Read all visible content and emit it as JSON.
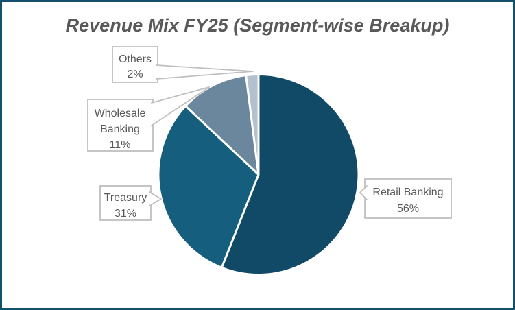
{
  "frame": {
    "border_color": "#14506E",
    "background_color": "#FFFFFF"
  },
  "title": "Revenue Mix FY25 (Segment-wise Breakup)",
  "chart_data": {
    "type": "pie",
    "title": "Revenue Mix FY25 (Segment-wise Breakup)",
    "categories": [
      "Retail Banking",
      "Treasury",
      "Wholesale Banking",
      "Others"
    ],
    "values": [
      56,
      31,
      11,
      2
    ],
    "unit": "%",
    "colors": [
      "#114A66",
      "#155E7D",
      "#6A879E",
      "#B2C1CD"
    ],
    "start_angle_deg": 0,
    "direction": "clockwise",
    "slice_border_color": "#FFFFFF",
    "legend": "none",
    "labels": "external callout boxes with category name and percentage"
  },
  "callouts": {
    "others": {
      "line1": "Others",
      "line2": "2%"
    },
    "wholesale": {
      "line1": "Wholesale",
      "line2": "Banking",
      "line3": "11%"
    },
    "treasury": {
      "line1": "Treasury",
      "line2": "31%"
    },
    "retail": {
      "line1": "Retail Banking",
      "line2": "56%"
    }
  },
  "styles": {
    "title_color": "#595959",
    "label_text_color": "#595959",
    "callout_border_color": "#BFBFBF"
  }
}
